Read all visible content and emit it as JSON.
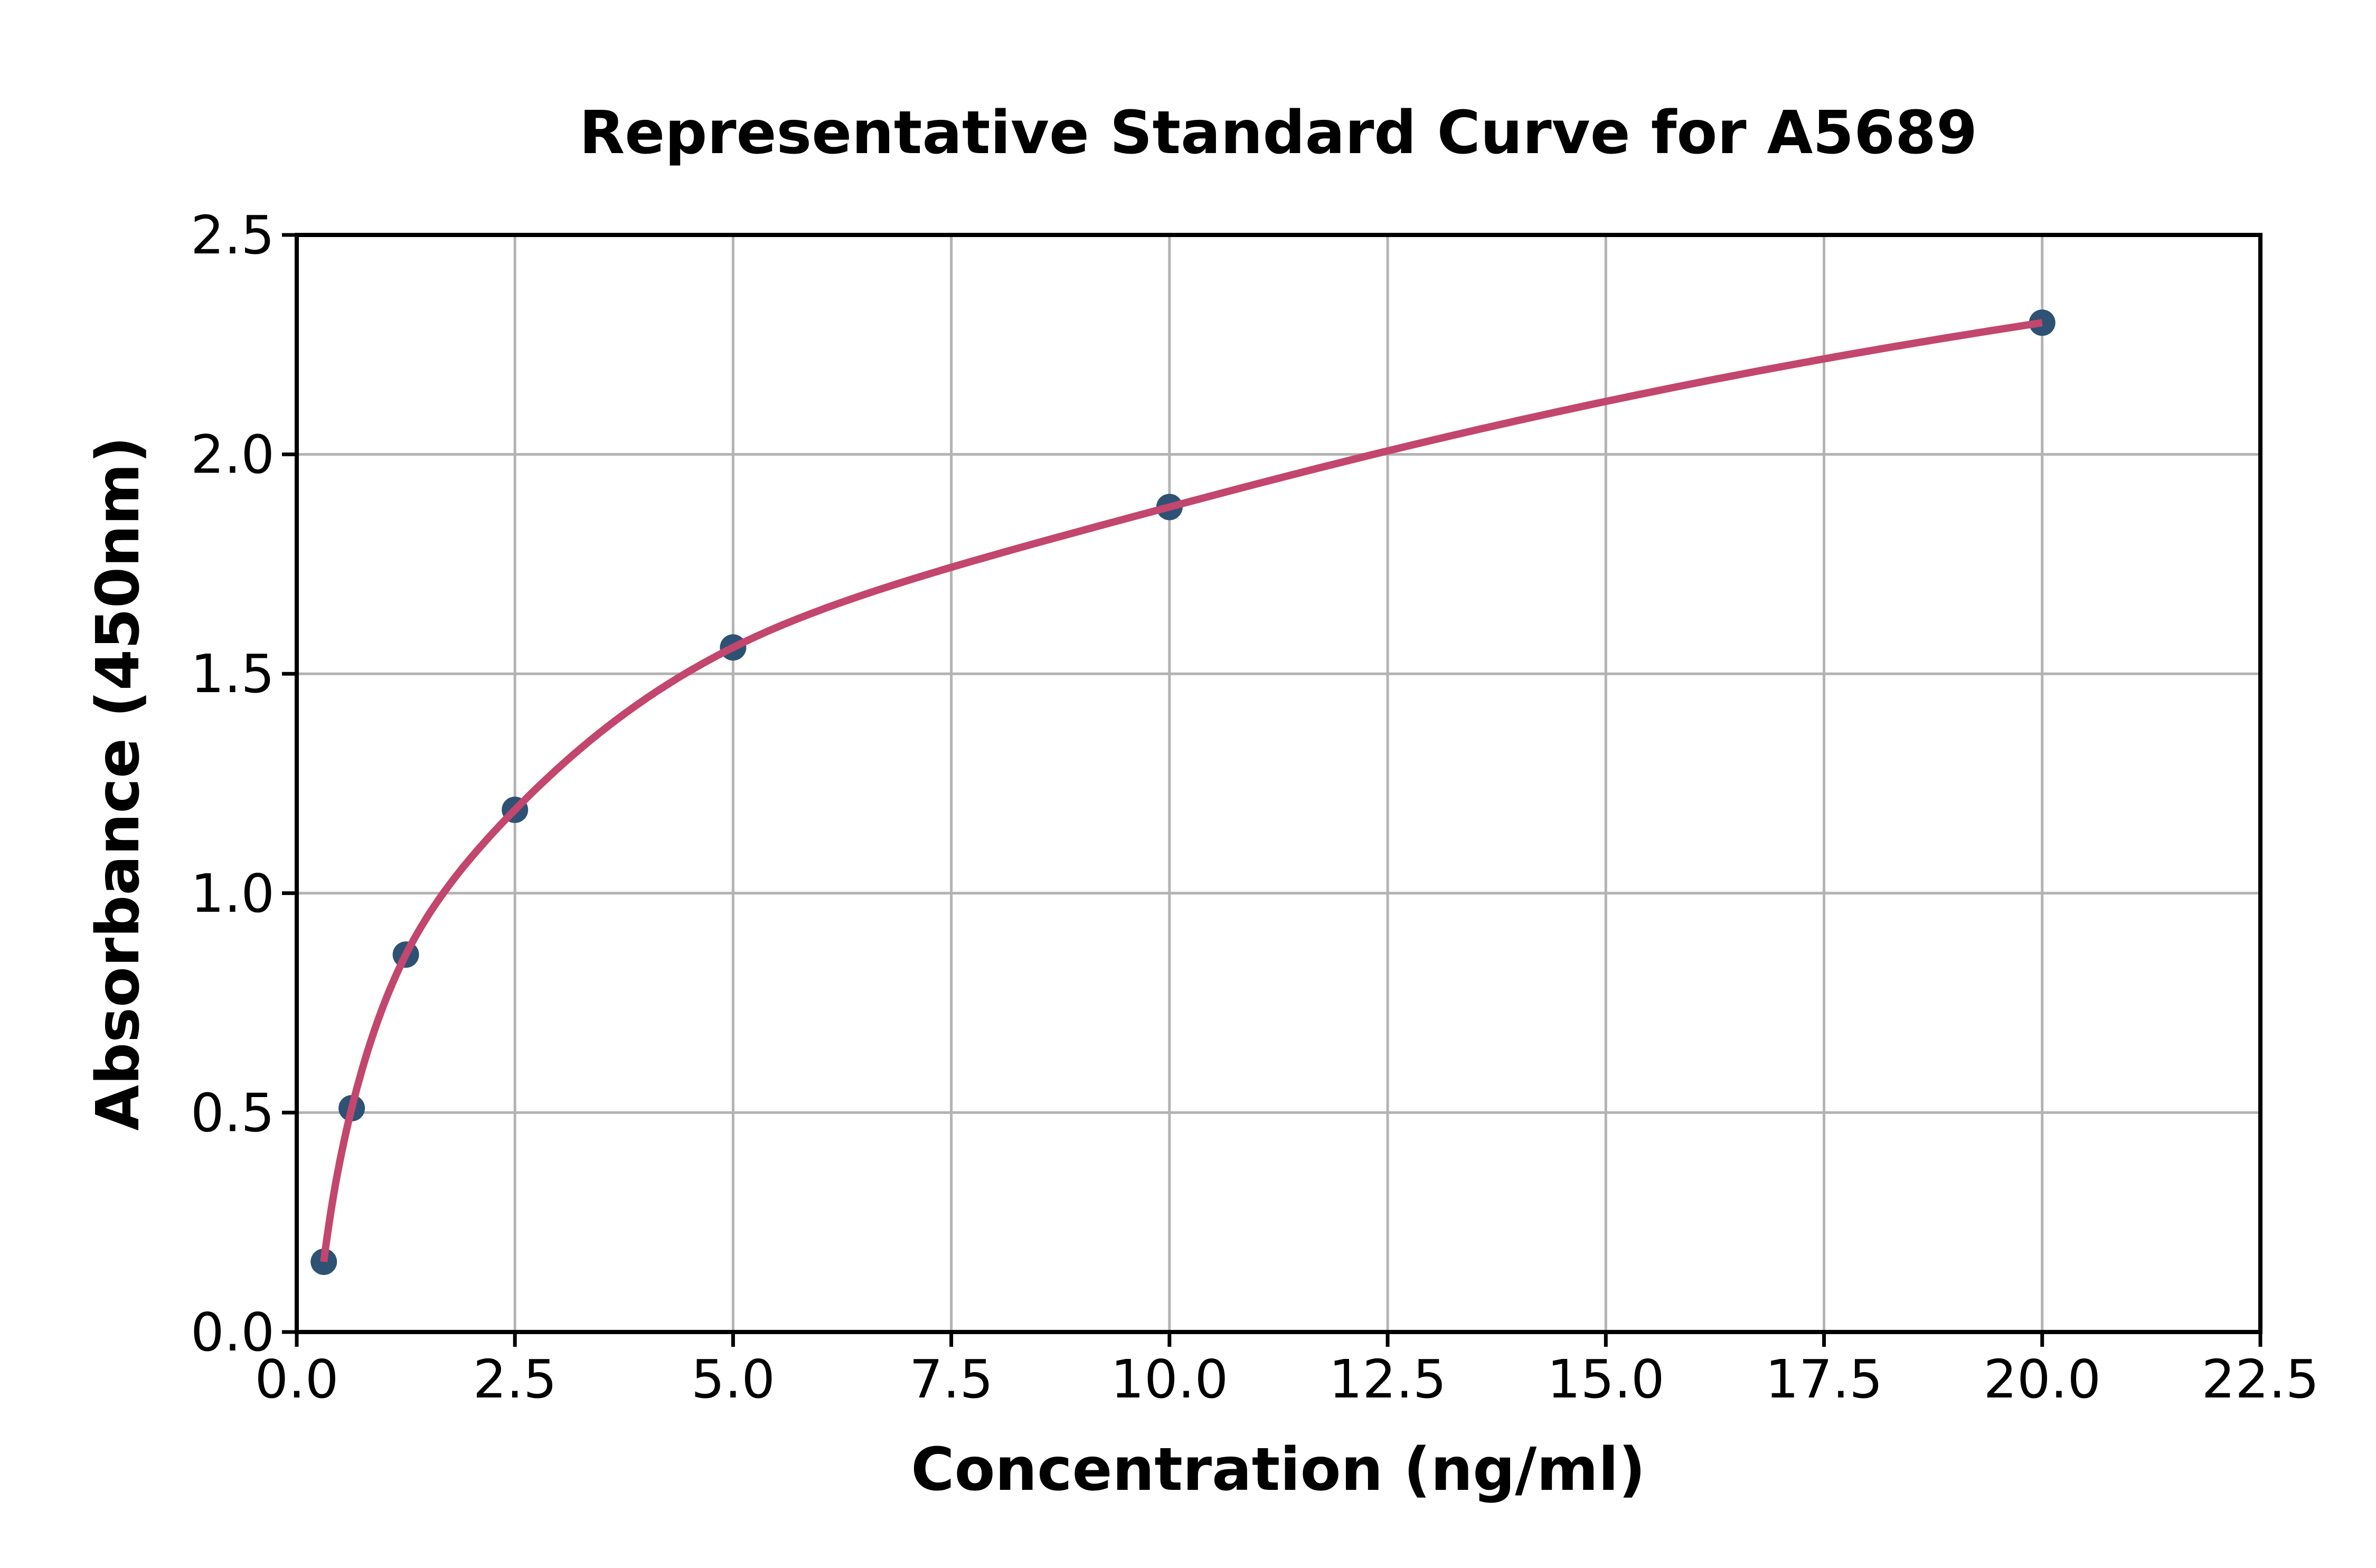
{
  "chart_data": {
    "type": "scatter",
    "title": "Representative Standard Curve for A5689",
    "xlabel": "Concentration (ng/ml)",
    "ylabel": "Absorbance (450nm)",
    "xlim": [
      0,
      22.5
    ],
    "ylim": [
      0,
      2.5
    ],
    "x_ticks": [
      0.0,
      2.5,
      5.0,
      7.5,
      10.0,
      12.5,
      15.0,
      17.5,
      20.0,
      22.5
    ],
    "y_ticks": [
      0.0,
      0.5,
      1.0,
      1.5,
      2.0,
      2.5
    ],
    "tick_decimals": 1,
    "grid": true,
    "legend_position": "none",
    "series": [
      {
        "name": "standard-points",
        "type": "scatter",
        "x": [
          0.31,
          0.63,
          1.25,
          2.5,
          5.0,
          10.0,
          20.0
        ],
        "y": [
          0.16,
          0.51,
          0.86,
          1.19,
          1.56,
          1.88,
          2.3
        ],
        "color": "#2e5274"
      },
      {
        "name": "fit-curve",
        "type": "smooth-line",
        "interpolation": "monotone-cubic-in-log-x",
        "derived_from": "standard-points",
        "color": "#c3466e"
      }
    ],
    "colors": {
      "grid": "#b3b3b3",
      "axis": "#000000",
      "text": "#000000",
      "background": "#ffffff"
    }
  }
}
